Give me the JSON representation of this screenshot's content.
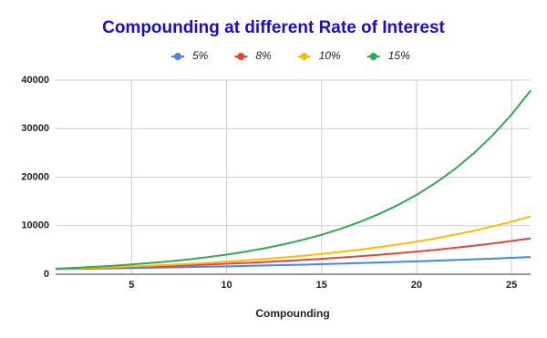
{
  "chart_data": {
    "type": "line",
    "title": "Compounding at different Rate of Interest",
    "x_label": "Compounding",
    "x": [
      1,
      2,
      3,
      4,
      5,
      6,
      7,
      8,
      9,
      10,
      11,
      12,
      13,
      14,
      15,
      16,
      17,
      18,
      19,
      20,
      21,
      22,
      23,
      24,
      25,
      26
    ],
    "xlim": [
      1,
      26
    ],
    "xticks": [
      5,
      10,
      15,
      20,
      25
    ],
    "ylim": [
      0,
      40000
    ],
    "yticks": [
      0,
      10000,
      20000,
      30000,
      40000
    ],
    "grid": true,
    "legend": "top",
    "series": [
      {
        "name": "5%",
        "color": "#4285f4",
        "values": [
          1050,
          1103,
          1158,
          1216,
          1276,
          1340,
          1407,
          1477,
          1551,
          1629,
          1710,
          1796,
          1886,
          1980,
          2079,
          2183,
          2292,
          2407,
          2527,
          2653,
          2786,
          2925,
          3072,
          3225,
          3386,
          3556
        ]
      },
      {
        "name": "8%",
        "color": "#ea4335",
        "values": [
          1080,
          1166,
          1260,
          1360,
          1469,
          1587,
          1714,
          1851,
          1999,
          2159,
          2332,
          2518,
          2720,
          2937,
          3172,
          3426,
          3700,
          3996,
          4316,
          4661,
          5034,
          5437,
          5871,
          6341,
          6848,
          7396
        ]
      },
      {
        "name": "10%",
        "color": "#fbbc04",
        "values": [
          1100,
          1210,
          1331,
          1464,
          1611,
          1772,
          1949,
          2144,
          2358,
          2594,
          2853,
          3138,
          3452,
          3797,
          4177,
          4595,
          5054,
          5560,
          6116,
          6727,
          7400,
          8140,
          8954,
          9850,
          10835,
          11918
        ]
      },
      {
        "name": "15%",
        "color": "#34a853",
        "values": [
          1150,
          1323,
          1521,
          1749,
          2011,
          2313,
          2660,
          3059,
          3518,
          4046,
          4652,
          5350,
          6153,
          7076,
          8137,
          9358,
          10761,
          12375,
          14232,
          16367,
          18822,
          21645,
          24891,
          28625,
          32919,
          37857
        ]
      }
    ]
  }
}
